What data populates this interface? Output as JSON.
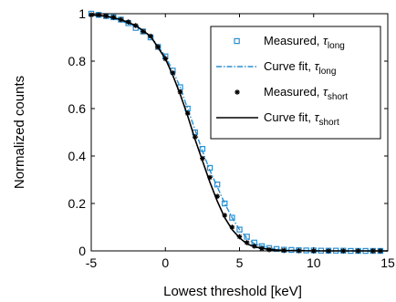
{
  "chart_data": {
    "type": "line",
    "title": "",
    "xlabel": "Lowest threshold [keV]",
    "ylabel": "Normalized counts",
    "xlim": [
      -5,
      15
    ],
    "ylim": [
      0,
      1
    ],
    "xticks": [
      -5,
      0,
      5,
      10,
      15
    ],
    "yticks": [
      0,
      0.2,
      0.4,
      0.6,
      0.8,
      1
    ],
    "xtick_labels": [
      "-5",
      "0",
      "5",
      "10",
      "15"
    ],
    "ytick_labels": [
      "0",
      "0.2",
      "0.4",
      "0.6",
      "0.8",
      "1"
    ],
    "grid": false,
    "legend_position": "top-right",
    "colors": {
      "long": "#2b8fd0",
      "short": "#000000"
    },
    "series": [
      {
        "name": "Measured, τlong",
        "legend_main": "Measured, ",
        "legend_tau": "τ",
        "legend_sub": "long",
        "kind": "markers",
        "marker": "square",
        "x": [
          -5,
          -4.5,
          -4,
          -3.5,
          -3,
          -2.5,
          -2,
          -1.5,
          -1,
          -0.5,
          0,
          0.5,
          1,
          1.5,
          2,
          2.5,
          3,
          3.5,
          4,
          4.5,
          5,
          5.5,
          6,
          6.5,
          7,
          7.5,
          8,
          8.5,
          9,
          9.5,
          10,
          10.5,
          11,
          11.5,
          12,
          12.5,
          13,
          13.5,
          14,
          14.5
        ],
        "y": [
          1.0,
          0.995,
          0.99,
          0.985,
          0.975,
          0.96,
          0.94,
          0.925,
          0.9,
          0.86,
          0.82,
          0.76,
          0.69,
          0.6,
          0.5,
          0.43,
          0.35,
          0.28,
          0.2,
          0.14,
          0.09,
          0.06,
          0.035,
          0.02,
          0.012,
          0.008,
          0.005,
          0.004,
          0.003,
          0.002,
          0.002,
          0.001,
          0.001,
          0.001,
          0.001,
          0.0,
          0.0,
          0.0,
          0.0,
          0.0
        ]
      },
      {
        "name": "Curve fit, τlong",
        "legend_main": "Curve fit, ",
        "legend_tau": "τ",
        "legend_sub": "long",
        "kind": "line",
        "dash": "dashdot",
        "x": [
          -5,
          -4,
          -3,
          -2,
          -1,
          0,
          0.5,
          1,
          1.5,
          2,
          2.5,
          3,
          3.5,
          4,
          4.5,
          5,
          5.5,
          6,
          7,
          8,
          9,
          10,
          12,
          15
        ],
        "y": [
          0.995,
          0.988,
          0.97,
          0.945,
          0.905,
          0.82,
          0.76,
          0.69,
          0.6,
          0.51,
          0.42,
          0.34,
          0.27,
          0.2,
          0.14,
          0.09,
          0.055,
          0.03,
          0.012,
          0.004,
          0.002,
          0.001,
          0.0,
          0.0
        ]
      },
      {
        "name": "Measured, τshort",
        "legend_main": "Measured, ",
        "legend_tau": "τ",
        "legend_sub": "short",
        "kind": "markers",
        "marker": "asterisk",
        "x": [
          -5,
          -4.5,
          -4,
          -3.5,
          -3,
          -2.5,
          -2,
          -1.5,
          -1,
          -0.5,
          0,
          0.5,
          1,
          1.5,
          2,
          2.5,
          3,
          3.5,
          4,
          4.5,
          5,
          5.5,
          6,
          6.5,
          7,
          8,
          9,
          10,
          11,
          12,
          13,
          14,
          14.5
        ],
        "y": [
          0.995,
          0.995,
          0.99,
          0.985,
          0.975,
          0.965,
          0.95,
          0.925,
          0.905,
          0.86,
          0.81,
          0.75,
          0.67,
          0.58,
          0.48,
          0.39,
          0.31,
          0.23,
          0.15,
          0.1,
          0.06,
          0.035,
          0.02,
          0.01,
          0.005,
          0.002,
          0.001,
          0.0,
          0.0,
          0.0,
          0.0,
          0.0,
          0.0
        ]
      },
      {
        "name": "Curve fit, τshort",
        "legend_main": "Curve fit, ",
        "legend_tau": "τ",
        "legend_sub": "short",
        "kind": "line",
        "dash": "solid",
        "x": [
          -5,
          -4,
          -3,
          -2,
          -1,
          0,
          0.5,
          1,
          1.5,
          2,
          2.5,
          3,
          3.5,
          4,
          4.5,
          5,
          5.5,
          6,
          7,
          8,
          9,
          10,
          12,
          15
        ],
        "y": [
          0.995,
          0.99,
          0.975,
          0.95,
          0.905,
          0.81,
          0.74,
          0.66,
          0.57,
          0.47,
          0.38,
          0.29,
          0.21,
          0.14,
          0.09,
          0.055,
          0.03,
          0.017,
          0.006,
          0.002,
          0.001,
          0.0,
          0.0,
          0.0
        ]
      }
    ]
  }
}
